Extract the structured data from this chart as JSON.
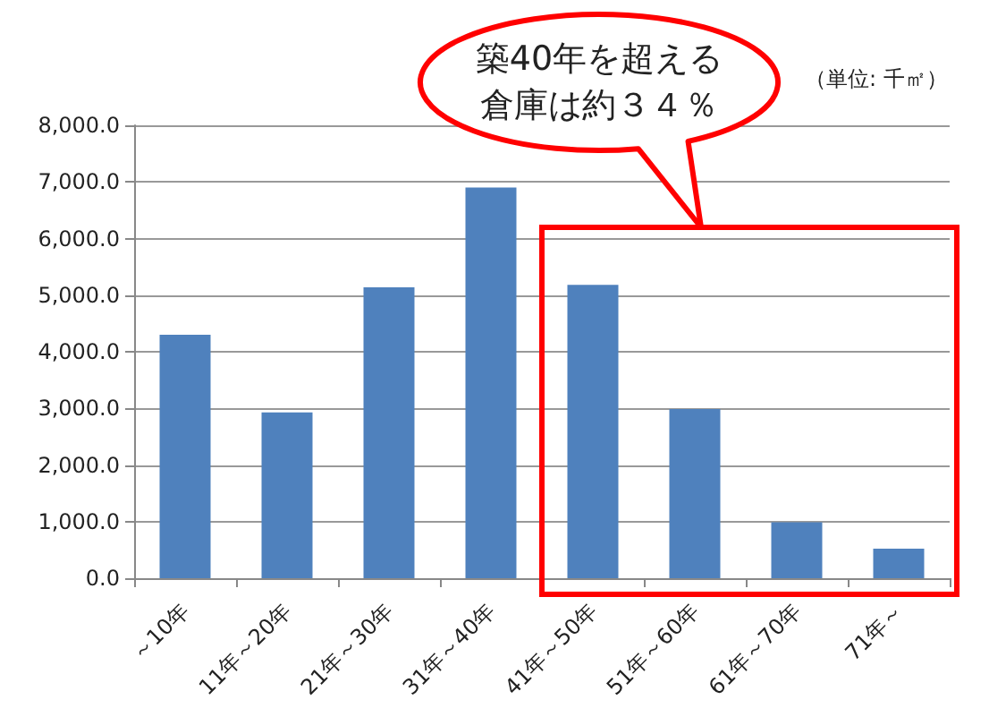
{
  "chart_data": {
    "type": "bar",
    "categories": [
      "～10年",
      "11年～20年",
      "21年～30年",
      "31年～40年",
      "41年～50年",
      "51年～60年",
      "61年～70年",
      "71年～"
    ],
    "values": [
      4300,
      2930,
      5140,
      6900,
      5180,
      2990,
      990,
      520
    ],
    "color": "#4f81bd",
    "ylim": [
      0,
      8000
    ],
    "yticks": [
      {
        "value": 0,
        "label": "0.0"
      },
      {
        "value": 1000,
        "label": "1,000.0"
      },
      {
        "value": 2000,
        "label": "2,000.0"
      },
      {
        "value": 3000,
        "label": "3,000.0"
      },
      {
        "value": 4000,
        "label": "4,000.0"
      },
      {
        "value": 5000,
        "label": "5,000.0"
      },
      {
        "value": 6000,
        "label": "6,000.0"
      },
      {
        "value": 7000,
        "label": "7,000.0"
      },
      {
        "value": 8000,
        "label": "8,000.0"
      }
    ],
    "grid": "y",
    "annotations": [
      "築40年を超える倉庫は約３４％",
      "（単位: 千㎡）"
    ]
  }
}
